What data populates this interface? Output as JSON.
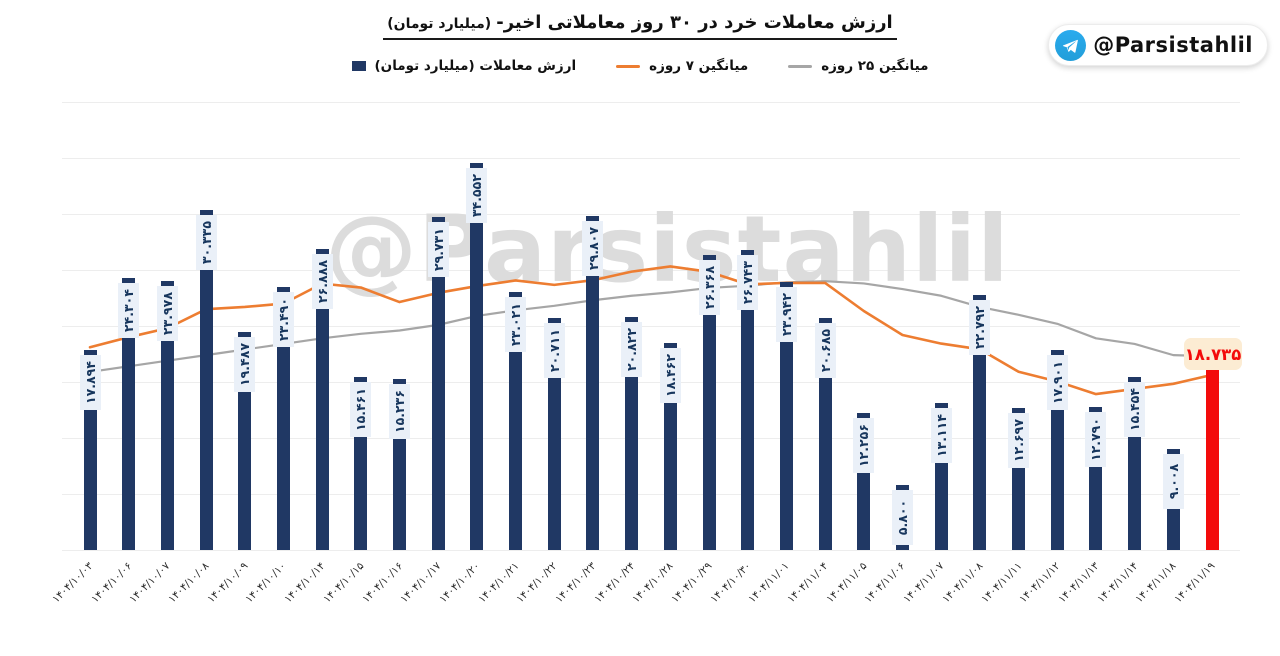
{
  "header": {
    "title": "ارزش معاملات خرد در ۳۰ روز معاملاتی اخیر-",
    "title_unit": "(میلیارد تومان)"
  },
  "badge": {
    "handle": "@Parsistahlil",
    "icon": "telegram-icon"
  },
  "watermark": {
    "text": "@Parsistahlil"
  },
  "legend": {
    "bars_label": "ارزش معاملات (میلیارد تومان)",
    "ma7_label": "میانگین ۷ روزه",
    "ma25_label": "میانگین ۲۵ روزه"
  },
  "colors": {
    "bar": "#203864",
    "bar_label_bg": "#eaf0f8",
    "bar_label_text": "#17365d",
    "ma7": "#ed7d31",
    "ma25": "#a6a6a6",
    "gridline": "#ededed",
    "highlight_red": "#f30b0b",
    "highlight_label_bg": "#fcecd3",
    "watermark": "#dcdcdc",
    "telegram_blue": "#2aabee"
  },
  "chart_data": {
    "type": "bar",
    "title": "ارزش معاملات خرد در ۳۰ روز معاملاتی اخیر- (میلیارد تومان)",
    "xlabel": "",
    "ylabel": "میلیارد تومان",
    "ylim": [
      0,
      40000
    ],
    "grid": true,
    "legend_position": "top",
    "categories": [
      "۱۴۰۴/۱۰/۰۳",
      "۱۴۰۴/۱۰/۰۶",
      "۱۴۰۴/۱۰/۰۷",
      "۱۴۰۴/۱۰/۰۸",
      "۱۴۰۴/۱۰/۰۹",
      "۱۴۰۴/۱۰/۱۰",
      "۱۴۰۴/۱۰/۱۴",
      "۱۴۰۴/۱۰/۱۵",
      "۱۴۰۴/۱۰/۱۶",
      "۱۴۰۴/۱۰/۱۷",
      "۱۴۰۴/۱۰/۲۰",
      "۱۴۰۴/۱۰/۲۱",
      "۱۴۰۴/۱۰/۲۲",
      "۱۴۰۴/۱۰/۲۳",
      "۱۴۰۴/۱۰/۲۴",
      "۱۴۰۴/۱۰/۲۸",
      "۱۴۰۴/۱۰/۲۹",
      "۱۴۰۴/۱۰/۳۰",
      "۱۴۰۴/۱۱/۰۱",
      "۱۴۰۴/۱۱/۰۴",
      "۱۴۰۴/۱۱/۰۵",
      "۱۴۰۴/۱۱/۰۶",
      "۱۴۰۴/۱۱/۰۷",
      "۱۴۰۴/۱۱/۰۸",
      "۱۴۰۴/۱۱/۱۱",
      "۱۴۰۴/۱۱/۱۲",
      "۱۴۰۴/۱۱/۱۳",
      "۱۴۰۴/۱۱/۱۴",
      "۱۴۰۴/۱۱/۱۸",
      "۱۴۰۴/۱۱/۱۹"
    ],
    "series": [
      {
        "name": "ارزش معاملات (میلیارد تومان)",
        "type": "bar",
        "color": "#203864",
        "values": [
          17894,
          24304,
          23978,
          30335,
          19487,
          23490,
          26888,
          15461,
          15236,
          29731,
          34552,
          23021,
          20711,
          29807,
          20822,
          18462,
          26368,
          26743,
          23942,
          20685,
          12256,
          5800,
          13114,
          22792,
          12697,
          17901,
          12790,
          15454,
          9008,
          18735
        ],
        "labels": [
          "۱۷.۸۹۴",
          "۲۴.۳۰۴",
          "۲۳.۹۷۸",
          "۳۰.۳۳۵",
          "۱۹.۴۸۷",
          "۲۳.۴۹۰",
          "۲۶.۸۸۸",
          "۱۵.۴۶۱",
          "۱۵.۲۳۶",
          "۲۹.۷۳۱",
          "۳۴.۵۵۲",
          "۲۳.۰۲۱",
          "۲۰.۷۱۱",
          "۲۹.۸۰۷",
          "۲۰.۸۲۲",
          "۱۸.۴۶۲",
          "۲۶.۳۶۸",
          "۲۶.۷۴۳",
          "۲۳.۹۴۲",
          "۲۰.۶۸۵",
          "۱۲.۲۵۶",
          "۵.۸۰۰",
          "۱۳.۱۱۴",
          "۲۲.۷۹۲",
          "۱۲.۶۹۷",
          "۱۷.۹۰۱",
          "۱۲.۷۹۰",
          "۱۵.۴۵۴",
          "۹.۰۰۸",
          "۱۸.۷۳۵"
        ]
      },
      {
        "name": "میانگین ۷ روزه",
        "type": "line",
        "color": "#ed7d31",
        "values": [
          18100,
          19000,
          19800,
          21500,
          21700,
          22000,
          23782,
          23435,
          22139,
          22961,
          23564,
          24068,
          23671,
          24088,
          24854,
          25315,
          24835,
          23719,
          23851,
          23847,
          21340,
          19194,
          18430,
          17919,
          15912,
          15049,
          13921,
          14378,
          14837,
          15640
        ]
      },
      {
        "name": "میانگین ۲۵ روزه",
        "type": "line",
        "color": "#a6a6a6",
        "values": [
          15900,
          16400,
          16900,
          17400,
          17900,
          18400,
          18900,
          19300,
          19600,
          20100,
          20900,
          21400,
          21800,
          22300,
          22700,
          23000,
          23400,
          23600,
          23900,
          24000,
          23800,
          23300,
          22700,
          21700,
          21000,
          20200,
          18900,
          18400,
          17400,
          17300
        ]
      }
    ],
    "highlight": {
      "index": 29,
      "bar_color": "#f30b0b",
      "label": "۱۸.۷۳۵",
      "label_bg": "#fcecd3",
      "label_color": "#f30b0b"
    }
  }
}
